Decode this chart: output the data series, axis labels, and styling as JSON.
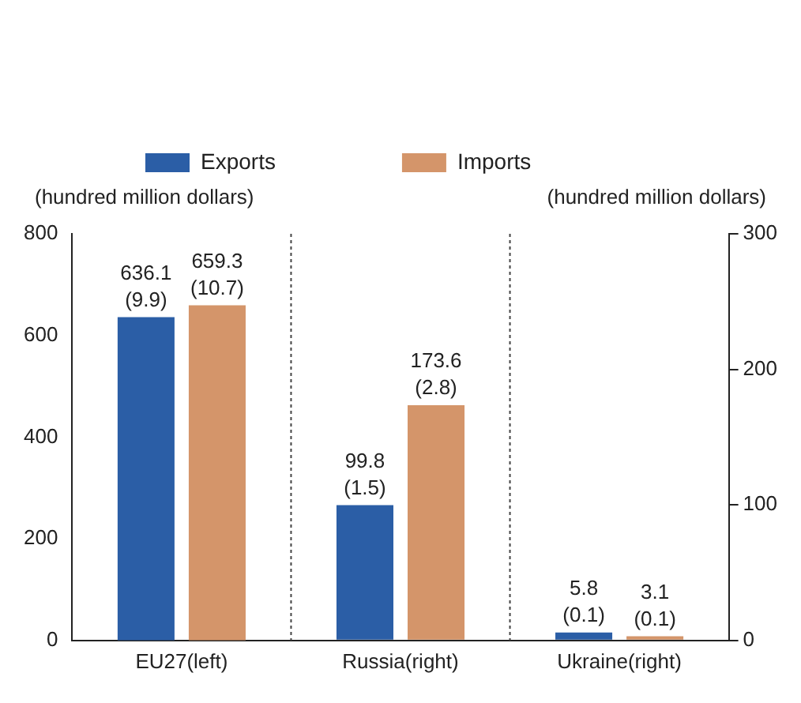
{
  "chart_data": {
    "type": "bar",
    "categories": [
      "EU27(left)",
      "Russia(right)",
      "Ukraine(right)"
    ],
    "ylabel": "(hundred million dollars)",
    "y2label": "(hundred million dollars)",
    "ylim": [
      0,
      800
    ],
    "yticks": [
      0,
      200,
      400,
      600,
      800
    ],
    "y2lim": [
      0,
      300
    ],
    "y2ticks": [
      0,
      100,
      200,
      300
    ],
    "series": [
      {
        "name": "Exports",
        "color": "#2b5ea6",
        "values": [
          636.1,
          null,
          null
        ],
        "value_labels": [
          "636.1\n(9.9)",
          null,
          null
        ]
      },
      {
        "name": "Imports",
        "color": "#d4956a",
        "values": [
          659.3,
          null,
          null
        ],
        "value_labels": [
          "659.3\n(10.7)",
          null,
          null
        ]
      },
      {
        "color": "#2b5ea6",
        "axis": "y2",
        "values": [
          null,
          99.8,
          5.8
        ],
        "value_labels": [
          null,
          "99.8\n(1.5)",
          "5.8\n(0.1)"
        ]
      },
      {
        "color": "#d4956a",
        "axis": "y2",
        "values": [
          null,
          173.6,
          3.1
        ],
        "value_labels": [
          null,
          "173.6\n(2.8)",
          "3.1\n(0.1)"
        ]
      }
    ],
    "grid": false,
    "legend": "top left"
  }
}
